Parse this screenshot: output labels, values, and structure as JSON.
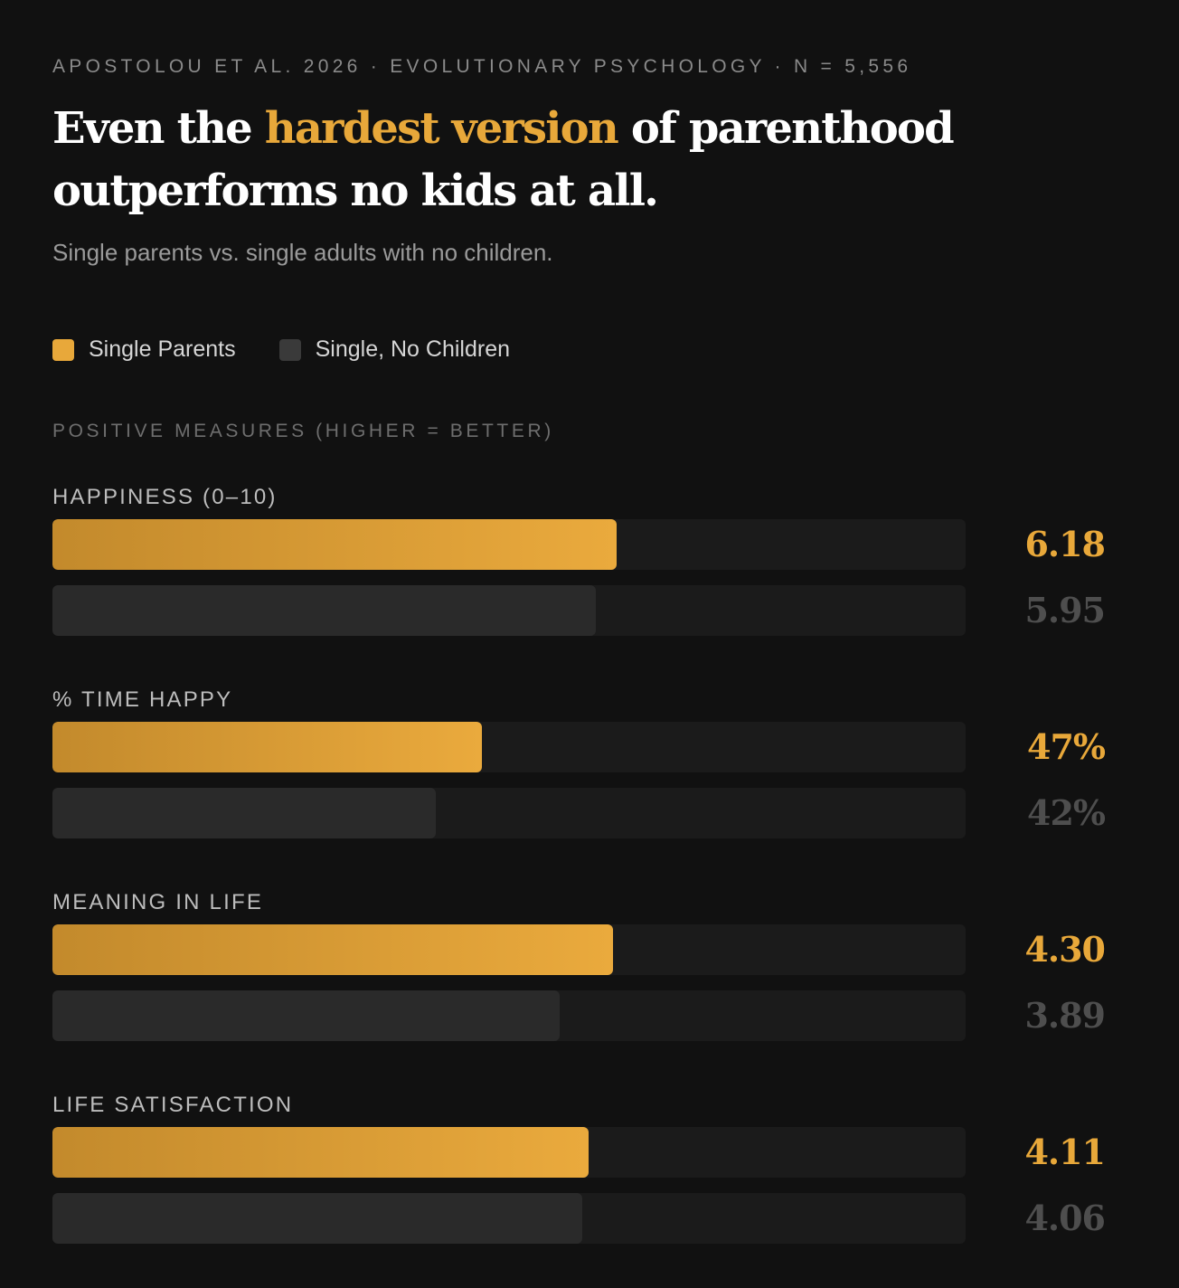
{
  "header": {
    "source": "APOSTOLOU ET AL. 2026 · EVOLUTIONARY PSYCHOLOGY · N = 5,556",
    "title_before": "Even the ",
    "title_highlight": "hardest version",
    "title_after": " of parenthood outperforms no kids at all.",
    "subtitle": "Single parents vs. single adults with no children."
  },
  "legend": {
    "items": [
      {
        "label": "Single Parents",
        "color": "#e8a83a"
      },
      {
        "label": "Single, No Children",
        "color": "#3a3a3a"
      }
    ]
  },
  "section": {
    "label": "POSITIVE MEASURES (HIGHER = BETTER)"
  },
  "colors": {
    "background": "#111111",
    "accent": "#e8a83a",
    "muted_bar": "#2a2a2a",
    "track": "#1b1b1b"
  },
  "chart_data": {
    "type": "bar",
    "orientation": "horizontal",
    "series": [
      {
        "name": "Single Parents"
      },
      {
        "name": "Single, No Children"
      }
    ],
    "metrics": [
      {
        "label": "HAPPINESS (0–10)",
        "max": 10,
        "values": [
          6.18,
          5.95
        ],
        "display": [
          "6.18",
          "5.95"
        ]
      },
      {
        "label": "% TIME HAPPY",
        "max": 100,
        "values": [
          47,
          42
        ],
        "display": [
          "47%",
          "42%"
        ]
      },
      {
        "label": "MEANING IN LIFE",
        "max": 7,
        "values": [
          4.3,
          3.89
        ],
        "display": [
          "4.30",
          "3.89"
        ]
      },
      {
        "label": "LIFE SATISFACTION",
        "max": 7,
        "values": [
          4.11,
          4.06
        ],
        "display": [
          "4.11",
          "4.06"
        ]
      }
    ],
    "legend_position": "top-left",
    "grid": false
  }
}
